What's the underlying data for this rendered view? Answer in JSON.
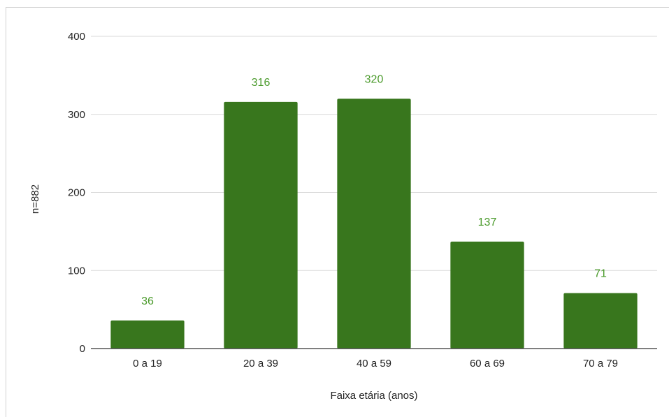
{
  "chart_data": {
    "type": "bar",
    "title": "",
    "xlabel": "Faixa etária (anos)",
    "ylabel": "n=882",
    "categories": [
      "0  a  19",
      "20 a 39",
      "40 a 59",
      "60 a 69",
      "70 a 79"
    ],
    "values": [
      36,
      316,
      320,
      137,
      71
    ],
    "data_labels": [
      "36",
      "316",
      "320",
      "137",
      "71"
    ],
    "ylim": [
      0,
      400
    ],
    "yticks": [
      0,
      100,
      200,
      300,
      400
    ],
    "ytick_labels": [
      "0",
      "100",
      "200",
      "300",
      "400"
    ],
    "grid": true,
    "legend": "none",
    "colors": {
      "bar": "#38761d",
      "data_label": "#4a9a2b",
      "grid": "#d9d9d9",
      "axis": "#333333"
    }
  }
}
